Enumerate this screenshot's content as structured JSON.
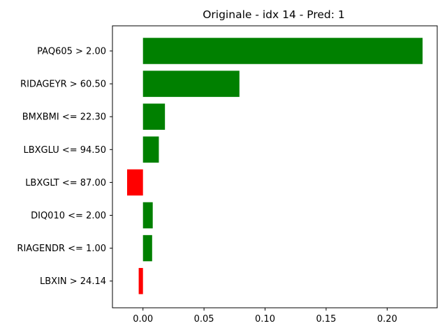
{
  "chart_data": {
    "type": "bar",
    "orientation": "horizontal",
    "title": "Originale - idx 14 - Pred: 1",
    "xlabel": "",
    "ylabel": "",
    "xlim": [
      -0.025,
      0.241
    ],
    "xticks": [
      0.0,
      0.05,
      0.1,
      0.15,
      0.2
    ],
    "xtick_labels": [
      "0.00",
      "0.05",
      "0.10",
      "0.15",
      "0.20"
    ],
    "grid": false,
    "categories": [
      "PAQ605 > 2.00",
      "RIDAGEYR > 60.50",
      "BMXBMI <= 22.30",
      "LBXGLU <= 94.50",
      "LBXGLT <= 87.00",
      "DIQ010 <= 2.00",
      "RIAGENDR <= 1.00",
      "LBXIN > 24.14"
    ],
    "values": [
      0.229,
      0.079,
      0.018,
      0.013,
      -0.013,
      0.008,
      0.0075,
      -0.0035
    ],
    "positive_color": "#008000",
    "negative_color": "#ff0000"
  }
}
